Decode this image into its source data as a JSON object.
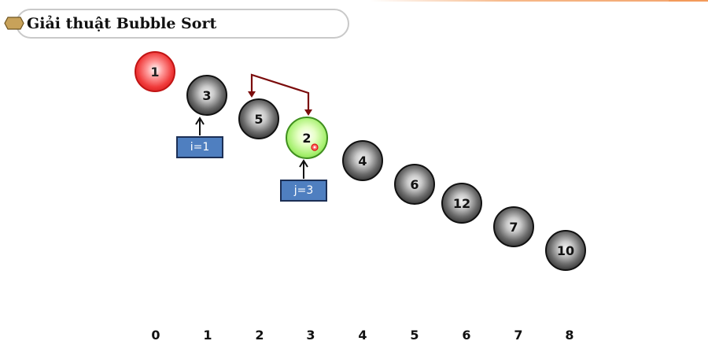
{
  "title": "Giải thuật Bubble Sort",
  "balls": [
    {
      "value": "1",
      "style": "red"
    },
    {
      "value": "3",
      "style": "dark"
    },
    {
      "value": "5",
      "style": "dark"
    },
    {
      "value": "2",
      "style": "green"
    },
    {
      "value": "4",
      "style": "dark"
    },
    {
      "value": "6",
      "style": "dark"
    },
    {
      "value": "12",
      "style": "dark"
    },
    {
      "value": "7",
      "style": "dark"
    },
    {
      "value": "10",
      "style": "dark"
    }
  ],
  "indices": [
    "0",
    "1",
    "2",
    "3",
    "4",
    "5",
    "6",
    "7",
    "8"
  ],
  "markers": {
    "i_label": "i=1",
    "j_label": "j=3"
  },
  "colors": {
    "swap_arrow": "#7b0c0c",
    "marker_fill": "#4f7fc0",
    "title_icon": "#c8a25a"
  },
  "icons": {
    "title": "hexagon-icon",
    "swap": "swap-arrow-icon",
    "pointer": "up-arrow-icon",
    "cursor": "mouse-cursor-icon"
  }
}
